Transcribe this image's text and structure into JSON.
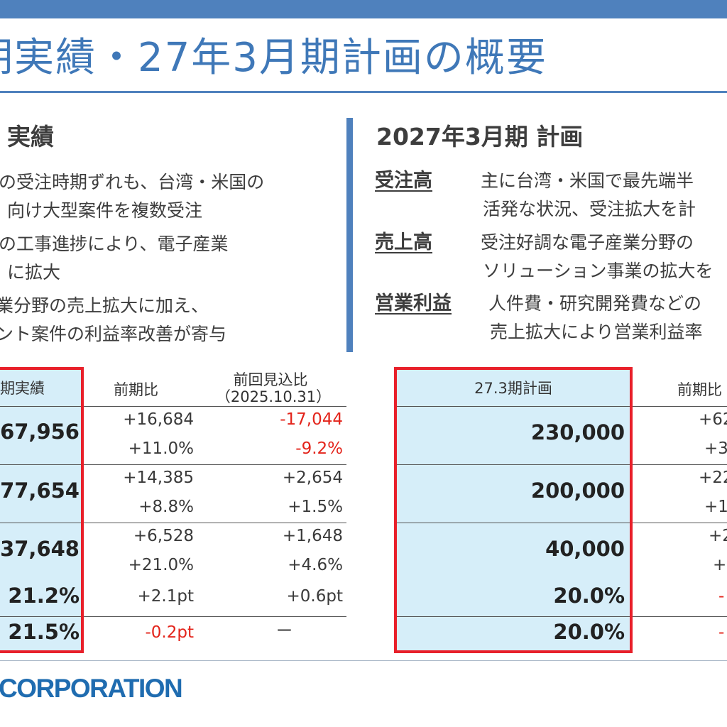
{
  "title": "期実績・27年3月期計画の概要",
  "left": {
    "heading": "実績",
    "bullets": [
      "の受注時期ずれも、台湾・米国の",
      "向け大型案件を複数受注",
      "の工事進捗により、電子産業",
      "に拡大",
      "業分野の売上拡大に加え、",
      "ント案件の利益率改善が寄与"
    ]
  },
  "right": {
    "heading": "2027年3月期  計画",
    "items": [
      {
        "label": "受注高",
        "lines": [
          "主に台湾・米国で最先端半",
          "活発な状況、受注拡大を計"
        ]
      },
      {
        "label": "売上高",
        "lines": [
          "受注好調な電子産業分野の",
          "ソリューション事業の拡大を"
        ]
      },
      {
        "label": "営業利益",
        "lines": [
          "人件費・研究開発費などの",
          "売上拡大により営業利益率"
        ]
      }
    ]
  },
  "table_left": {
    "headers": {
      "actual": "期実績",
      "yoy": "前期比",
      "vs_forecast": "前回見込比",
      "vs_forecast_date": "（2025.10.31）"
    },
    "rows": [
      {
        "actual": "67,956",
        "yoy": [
          "+16,684",
          "+11.0%"
        ],
        "fc": [
          "-17,044",
          "-9.2%"
        ]
      },
      {
        "actual": "77,654",
        "yoy": [
          "+14,385",
          "+8.8%"
        ],
        "fc": [
          "+2,654",
          "+1.5%"
        ]
      },
      {
        "actual": "37,648",
        "yoy": [
          "+6,528",
          "+21.0%"
        ],
        "fc": [
          "+1,648",
          "+4.6%"
        ]
      },
      {
        "actual": "21.2%",
        "yoy": [
          "+2.1pt"
        ],
        "fc": [
          "+0.6pt"
        ]
      },
      {
        "actual": "21.5%",
        "yoy": [
          "-0.2pt"
        ],
        "fc": [
          "ー"
        ]
      }
    ]
  },
  "table_right": {
    "headers": {
      "plan": "27.3期計画",
      "yoy": "前期比"
    },
    "rows": [
      {
        "plan": "230,000",
        "yoy": [
          "+62",
          "+3"
        ]
      },
      {
        "plan": "200,000",
        "yoy": [
          "+22",
          "+1"
        ]
      },
      {
        "plan": "40,000",
        "yoy": [
          "+2",
          "+"
        ]
      },
      {
        "plan": "20.0%",
        "yoy": [
          "-"
        ]
      },
      {
        "plan": "20.0%",
        "yoy": [
          "-"
        ]
      }
    ]
  },
  "footer": {
    "logo_text": "CORPORATION"
  },
  "colors": {
    "accent": "#4f81bd",
    "title": "#3f78b8",
    "highlight_fill": "#d6eef9",
    "highlight_border": "#e8202a",
    "negative": "#e3241b",
    "logo": "#1f6cb0"
  }
}
